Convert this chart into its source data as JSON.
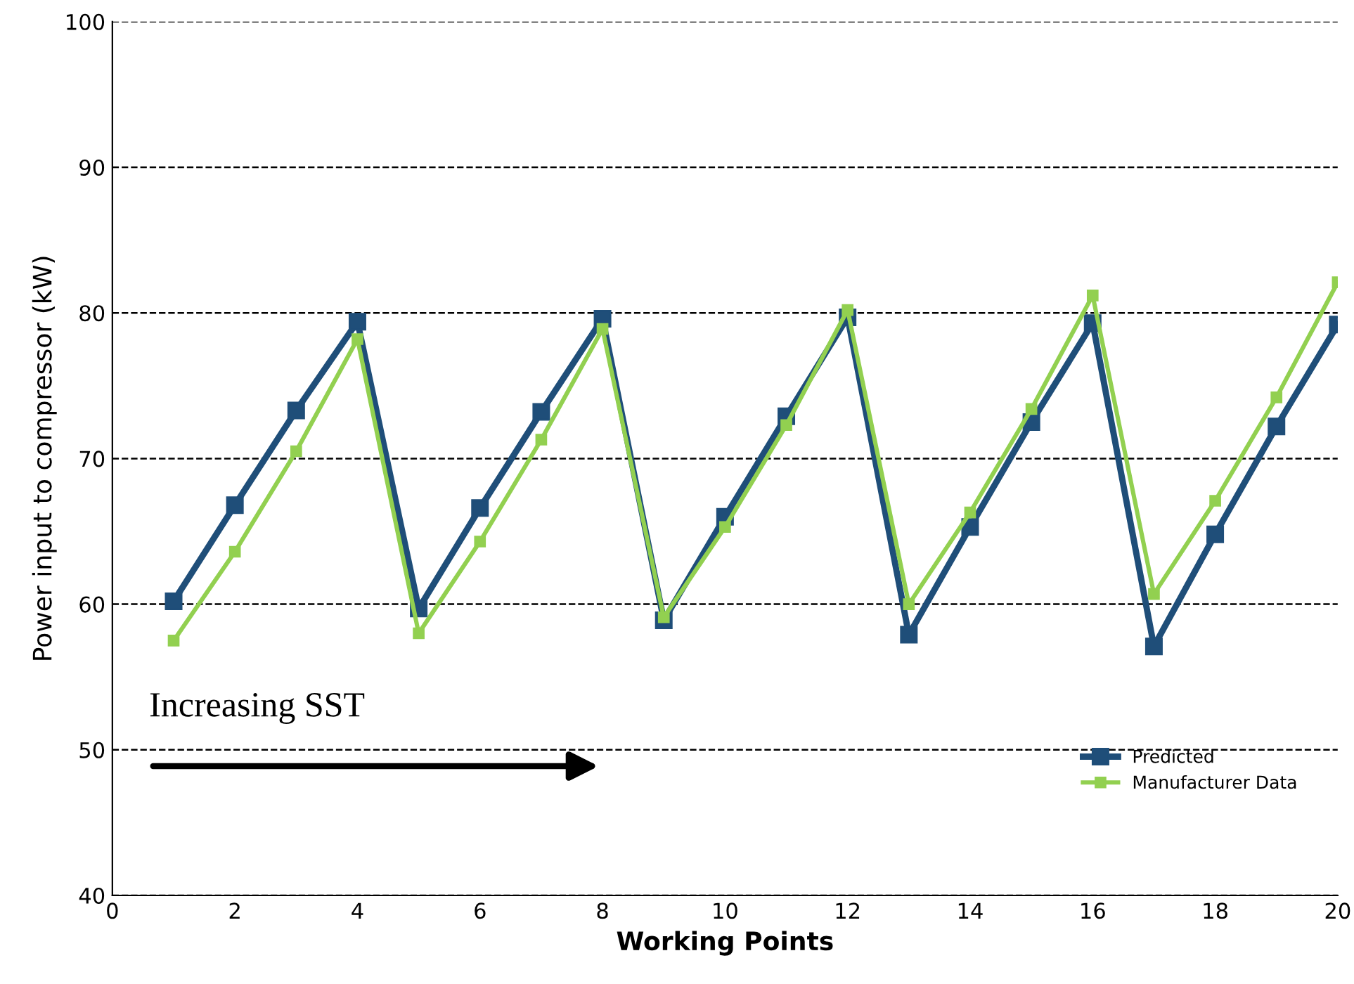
{
  "chart_data": {
    "type": "line",
    "xlabel": "Working Points",
    "ylabel": "Power input to compressor (kW)",
    "x": [
      1,
      2,
      3,
      4,
      5,
      6,
      7,
      8,
      9,
      10,
      11,
      12,
      13,
      14,
      15,
      16,
      17,
      18,
      19,
      20
    ],
    "series": [
      {
        "name": "Predicted",
        "color": "#1f4e79",
        "values": [
          60.2,
          66.8,
          73.3,
          79.4,
          59.7,
          66.6,
          73.2,
          79.6,
          58.9,
          66.0,
          72.9,
          79.7,
          57.9,
          65.3,
          72.5,
          79.3,
          57.1,
          64.8,
          72.2,
          79.2
        ]
      },
      {
        "name": "Manufacturer Data",
        "color": "#92d050",
        "values": [
          57.5,
          63.6,
          70.5,
          78.2,
          58.0,
          64.3,
          71.3,
          78.9,
          59.1,
          65.3,
          72.3,
          80.2,
          60.0,
          66.3,
          73.4,
          81.2,
          60.7,
          67.1,
          74.2,
          82.1
        ]
      }
    ],
    "xlim": [
      0,
      20
    ],
    "xticks": [
      0,
      2,
      4,
      6,
      8,
      10,
      12,
      14,
      16,
      18,
      20
    ],
    "ylim": [
      40,
      100
    ],
    "yticks": [
      40,
      50,
      60,
      70,
      80,
      90,
      100
    ],
    "grid": "y",
    "legend": "bottom right",
    "marker": "square",
    "line_style": "solid",
    "annotations": [
      "Increasing SST"
    ]
  }
}
